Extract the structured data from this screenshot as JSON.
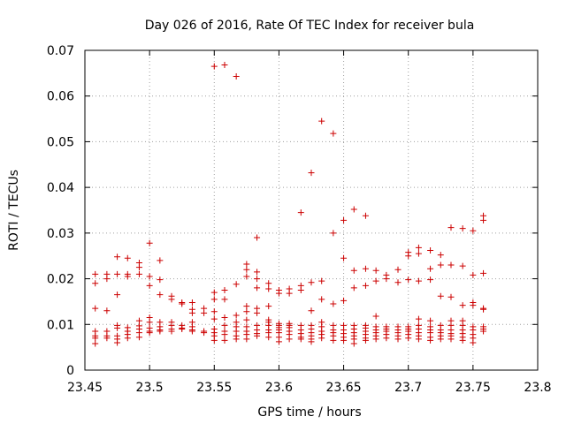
{
  "chart_data": {
    "type": "scatter",
    "title": "Day 026 of 2016, Rate Of TEC Index for receiver bula",
    "xlabel": "GPS time / hours",
    "ylabel": "ROTI / TECUs",
    "xlim": [
      23.45,
      23.8
    ],
    "ylim": [
      0,
      0.07
    ],
    "xticks": [
      "23.45",
      "23.5",
      "23.55",
      "23.6",
      "23.65",
      "23.7",
      "23.75",
      "23.8"
    ],
    "yticks": [
      "0",
      "0.01",
      "0.02",
      "0.03",
      "0.04",
      "0.05",
      "0.06",
      "0.07"
    ],
    "grid": true,
    "legend": "none",
    "marker": "plus",
    "color": "#cc0000",
    "series": [
      {
        "points": [
          [
            23.458,
            0.021
          ],
          [
            23.458,
            0.019
          ],
          [
            23.458,
            0.0135
          ],
          [
            23.458,
            0.0085
          ],
          [
            23.458,
            0.0075
          ],
          [
            23.458,
            0.007
          ],
          [
            23.458,
            0.0058
          ],
          [
            23.467,
            0.021
          ],
          [
            23.467,
            0.02
          ],
          [
            23.467,
            0.013
          ],
          [
            23.467,
            0.0085
          ],
          [
            23.467,
            0.0075
          ],
          [
            23.467,
            0.007
          ],
          [
            23.475,
            0.0248
          ],
          [
            23.475,
            0.021
          ],
          [
            23.475,
            0.0165
          ],
          [
            23.475,
            0.0098
          ],
          [
            23.475,
            0.0092
          ],
          [
            23.475,
            0.0075
          ],
          [
            23.475,
            0.0068
          ],
          [
            23.475,
            0.006
          ],
          [
            23.483,
            0.0245
          ],
          [
            23.483,
            0.021
          ],
          [
            23.483,
            0.0205
          ],
          [
            23.483,
            0.0093
          ],
          [
            23.483,
            0.0085
          ],
          [
            23.483,
            0.0078
          ],
          [
            23.483,
            0.007
          ],
          [
            23.492,
            0.0235
          ],
          [
            23.492,
            0.0225
          ],
          [
            23.492,
            0.021
          ],
          [
            23.492,
            0.0108
          ],
          [
            23.492,
            0.0097
          ],
          [
            23.492,
            0.009
          ],
          [
            23.492,
            0.0082
          ],
          [
            23.492,
            0.0072
          ],
          [
            23.5,
            0.0278
          ],
          [
            23.5,
            0.0205
          ],
          [
            23.5,
            0.0185
          ],
          [
            23.5,
            0.0115
          ],
          [
            23.5,
            0.0105
          ],
          [
            23.5,
            0.0092
          ],
          [
            23.5,
            0.0085
          ],
          [
            23.5,
            0.0082
          ],
          [
            23.508,
            0.024
          ],
          [
            23.508,
            0.0198
          ],
          [
            23.508,
            0.0165
          ],
          [
            23.508,
            0.0105
          ],
          [
            23.508,
            0.0095
          ],
          [
            23.508,
            0.0088
          ],
          [
            23.508,
            0.0085
          ],
          [
            23.517,
            0.0162
          ],
          [
            23.517,
            0.0155
          ],
          [
            23.517,
            0.0105
          ],
          [
            23.517,
            0.0098
          ],
          [
            23.517,
            0.009
          ],
          [
            23.517,
            0.0085
          ],
          [
            23.525,
            0.0148
          ],
          [
            23.525,
            0.0145
          ],
          [
            23.525,
            0.0098
          ],
          [
            23.525,
            0.0092
          ],
          [
            23.525,
            0.009
          ],
          [
            23.533,
            0.0148
          ],
          [
            23.533,
            0.0133
          ],
          [
            23.533,
            0.0125
          ],
          [
            23.533,
            0.0105
          ],
          [
            23.533,
            0.0095
          ],
          [
            23.533,
            0.0088
          ],
          [
            23.533,
            0.0085
          ],
          [
            23.542,
            0.0135
          ],
          [
            23.542,
            0.0125
          ],
          [
            23.542,
            0.0085
          ],
          [
            23.542,
            0.0082
          ],
          [
            23.55,
            0.0665
          ],
          [
            23.55,
            0.017
          ],
          [
            23.55,
            0.0155
          ],
          [
            23.55,
            0.0128
          ],
          [
            23.55,
            0.0112
          ],
          [
            23.55,
            0.009
          ],
          [
            23.55,
            0.0082
          ],
          [
            23.55,
            0.0075
          ],
          [
            23.55,
            0.0065
          ],
          [
            23.558,
            0.0668
          ],
          [
            23.558,
            0.0175
          ],
          [
            23.558,
            0.0155
          ],
          [
            23.558,
            0.0115
          ],
          [
            23.558,
            0.0098
          ],
          [
            23.558,
            0.0085
          ],
          [
            23.558,
            0.0078
          ],
          [
            23.558,
            0.0065
          ],
          [
            23.567,
            0.0643
          ],
          [
            23.567,
            0.0188
          ],
          [
            23.567,
            0.012
          ],
          [
            23.567,
            0.0105
          ],
          [
            23.567,
            0.0095
          ],
          [
            23.567,
            0.0085
          ],
          [
            23.567,
            0.0075
          ],
          [
            23.567,
            0.0068
          ],
          [
            23.575,
            0.0232
          ],
          [
            23.575,
            0.022
          ],
          [
            23.575,
            0.0205
          ],
          [
            23.575,
            0.014
          ],
          [
            23.575,
            0.0128
          ],
          [
            23.575,
            0.011
          ],
          [
            23.575,
            0.0095
          ],
          [
            23.575,
            0.0085
          ],
          [
            23.575,
            0.0078
          ],
          [
            23.575,
            0.0068
          ],
          [
            23.583,
            0.029
          ],
          [
            23.583,
            0.0215
          ],
          [
            23.583,
            0.02
          ],
          [
            23.583,
            0.018
          ],
          [
            23.583,
            0.0135
          ],
          [
            23.583,
            0.0125
          ],
          [
            23.583,
            0.0098
          ],
          [
            23.583,
            0.0088
          ],
          [
            23.583,
            0.008
          ],
          [
            23.583,
            0.0075
          ],
          [
            23.592,
            0.019
          ],
          [
            23.592,
            0.0178
          ],
          [
            23.592,
            0.014
          ],
          [
            23.592,
            0.011
          ],
          [
            23.592,
            0.0105
          ],
          [
            23.592,
            0.0098
          ],
          [
            23.592,
            0.0088
          ],
          [
            23.592,
            0.0082
          ],
          [
            23.592,
            0.0072
          ],
          [
            23.6,
            0.0175
          ],
          [
            23.6,
            0.0168
          ],
          [
            23.6,
            0.0102
          ],
          [
            23.6,
            0.0098
          ],
          [
            23.6,
            0.0093
          ],
          [
            23.6,
            0.0088
          ],
          [
            23.6,
            0.0082
          ],
          [
            23.6,
            0.0072
          ],
          [
            23.6,
            0.0062
          ],
          [
            23.608,
            0.0178
          ],
          [
            23.608,
            0.0168
          ],
          [
            23.608,
            0.0102
          ],
          [
            23.608,
            0.0098
          ],
          [
            23.608,
            0.0093
          ],
          [
            23.608,
            0.0085
          ],
          [
            23.608,
            0.0078
          ],
          [
            23.608,
            0.0068
          ],
          [
            23.617,
            0.0345
          ],
          [
            23.617,
            0.0185
          ],
          [
            23.617,
            0.0175
          ],
          [
            23.617,
            0.0098
          ],
          [
            23.617,
            0.0088
          ],
          [
            23.617,
            0.008
          ],
          [
            23.617,
            0.0072
          ],
          [
            23.617,
            0.0068
          ],
          [
            23.625,
            0.0432
          ],
          [
            23.625,
            0.0192
          ],
          [
            23.625,
            0.013
          ],
          [
            23.625,
            0.0098
          ],
          [
            23.625,
            0.009
          ],
          [
            23.625,
            0.0082
          ],
          [
            23.625,
            0.0075
          ],
          [
            23.625,
            0.0068
          ],
          [
            23.625,
            0.0062
          ],
          [
            23.633,
            0.0545
          ],
          [
            23.633,
            0.0195
          ],
          [
            23.633,
            0.0155
          ],
          [
            23.633,
            0.0105
          ],
          [
            23.633,
            0.0095
          ],
          [
            23.633,
            0.0085
          ],
          [
            23.633,
            0.0078
          ],
          [
            23.633,
            0.007
          ],
          [
            23.642,
            0.0518
          ],
          [
            23.642,
            0.03
          ],
          [
            23.642,
            0.0145
          ],
          [
            23.642,
            0.0098
          ],
          [
            23.642,
            0.0088
          ],
          [
            23.642,
            0.0082
          ],
          [
            23.642,
            0.0075
          ],
          [
            23.642,
            0.0065
          ],
          [
            23.65,
            0.0328
          ],
          [
            23.65,
            0.0245
          ],
          [
            23.65,
            0.0152
          ],
          [
            23.65,
            0.0098
          ],
          [
            23.65,
            0.0088
          ],
          [
            23.65,
            0.008
          ],
          [
            23.65,
            0.0072
          ],
          [
            23.65,
            0.0065
          ],
          [
            23.658,
            0.0352
          ],
          [
            23.658,
            0.0218
          ],
          [
            23.658,
            0.018
          ],
          [
            23.658,
            0.0098
          ],
          [
            23.658,
            0.009
          ],
          [
            23.658,
            0.0082
          ],
          [
            23.658,
            0.0075
          ],
          [
            23.658,
            0.0068
          ],
          [
            23.658,
            0.0058
          ],
          [
            23.667,
            0.0338
          ],
          [
            23.667,
            0.0222
          ],
          [
            23.667,
            0.0185
          ],
          [
            23.667,
            0.0098
          ],
          [
            23.667,
            0.0092
          ],
          [
            23.667,
            0.0085
          ],
          [
            23.667,
            0.0078
          ],
          [
            23.667,
            0.007
          ],
          [
            23.667,
            0.0065
          ],
          [
            23.675,
            0.0218
          ],
          [
            23.675,
            0.0195
          ],
          [
            23.675,
            0.0118
          ],
          [
            23.675,
            0.0095
          ],
          [
            23.675,
            0.0088
          ],
          [
            23.675,
            0.0082
          ],
          [
            23.675,
            0.0075
          ],
          [
            23.675,
            0.0068
          ],
          [
            23.683,
            0.0208
          ],
          [
            23.683,
            0.02
          ],
          [
            23.683,
            0.0095
          ],
          [
            23.683,
            0.009
          ],
          [
            23.683,
            0.0085
          ],
          [
            23.683,
            0.0078
          ],
          [
            23.683,
            0.007
          ],
          [
            23.692,
            0.022
          ],
          [
            23.692,
            0.0192
          ],
          [
            23.692,
            0.0095
          ],
          [
            23.692,
            0.0088
          ],
          [
            23.692,
            0.0082
          ],
          [
            23.692,
            0.0075
          ],
          [
            23.692,
            0.0068
          ],
          [
            23.7,
            0.0258
          ],
          [
            23.7,
            0.025
          ],
          [
            23.7,
            0.0198
          ],
          [
            23.7,
            0.0095
          ],
          [
            23.7,
            0.009
          ],
          [
            23.7,
            0.0085
          ],
          [
            23.7,
            0.0078
          ],
          [
            23.7,
            0.007
          ],
          [
            23.708,
            0.0268
          ],
          [
            23.708,
            0.0255
          ],
          [
            23.708,
            0.0195
          ],
          [
            23.708,
            0.0112
          ],
          [
            23.708,
            0.0098
          ],
          [
            23.708,
            0.009
          ],
          [
            23.708,
            0.0082
          ],
          [
            23.708,
            0.0075
          ],
          [
            23.708,
            0.0068
          ],
          [
            23.717,
            0.0262
          ],
          [
            23.717,
            0.0222
          ],
          [
            23.717,
            0.0198
          ],
          [
            23.717,
            0.0108
          ],
          [
            23.717,
            0.0095
          ],
          [
            23.717,
            0.0088
          ],
          [
            23.717,
            0.0082
          ],
          [
            23.717,
            0.0072
          ],
          [
            23.717,
            0.0065
          ],
          [
            23.725,
            0.0252
          ],
          [
            23.725,
            0.023
          ],
          [
            23.725,
            0.0162
          ],
          [
            23.725,
            0.0098
          ],
          [
            23.725,
            0.0088
          ],
          [
            23.725,
            0.0082
          ],
          [
            23.725,
            0.0075
          ],
          [
            23.725,
            0.0068
          ],
          [
            23.733,
            0.0312
          ],
          [
            23.733,
            0.023
          ],
          [
            23.733,
            0.016
          ],
          [
            23.733,
            0.0108
          ],
          [
            23.733,
            0.0098
          ],
          [
            23.733,
            0.0088
          ],
          [
            23.733,
            0.008
          ],
          [
            23.733,
            0.0075
          ],
          [
            23.733,
            0.0068
          ],
          [
            23.742,
            0.031
          ],
          [
            23.742,
            0.0228
          ],
          [
            23.742,
            0.0142
          ],
          [
            23.742,
            0.0108
          ],
          [
            23.742,
            0.0098
          ],
          [
            23.742,
            0.0088
          ],
          [
            23.742,
            0.008
          ],
          [
            23.742,
            0.0072
          ],
          [
            23.742,
            0.0065
          ],
          [
            23.75,
            0.0305
          ],
          [
            23.75,
            0.0208
          ],
          [
            23.75,
            0.0148
          ],
          [
            23.75,
            0.0142
          ],
          [
            23.75,
            0.0095
          ],
          [
            23.75,
            0.0088
          ],
          [
            23.75,
            0.0078
          ],
          [
            23.75,
            0.007
          ],
          [
            23.75,
            0.006
          ],
          [
            23.758,
            0.0338
          ],
          [
            23.758,
            0.0328
          ],
          [
            23.758,
            0.0212
          ],
          [
            23.758,
            0.0135
          ],
          [
            23.758,
            0.0133
          ],
          [
            23.758,
            0.0095
          ],
          [
            23.758,
            0.009
          ],
          [
            23.758,
            0.0085
          ]
        ]
      }
    ]
  }
}
